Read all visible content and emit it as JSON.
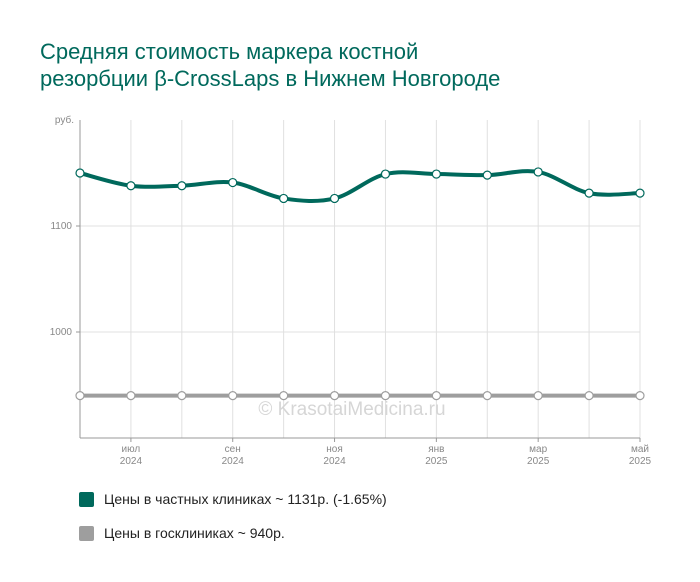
{
  "title_line1": "Средняя стоимость маркера костной",
  "title_line2": "резорбции β-CrossLaps в Нижнем Новгороде",
  "watermark": "© KrasotaiMedicina.ru",
  "colors": {
    "private": "#00695c",
    "public": "#9e9e9e",
    "title": "#00695c",
    "grid": "#e0e0e0",
    "axis": "#999999"
  },
  "legend": [
    {
      "label": "Цены в частных клиниках ~ 1131р. (-1.65%)",
      "color": "#00695c"
    },
    {
      "label": "Цены в госклиниках ~ 940р.",
      "color": "#9e9e9e"
    }
  ],
  "chart_data": {
    "type": "line",
    "y_unit_label": "руб.",
    "ylim": [
      900,
      1200
    ],
    "yticks": [
      1000,
      1100
    ],
    "x_tick_labels": [
      {
        "month": "июл",
        "year": "2024"
      },
      {
        "month": "сен",
        "year": "2024"
      },
      {
        "month": "ноя",
        "year": "2024"
      },
      {
        "month": "янв",
        "year": "2025"
      },
      {
        "month": "мар",
        "year": "2025"
      },
      {
        "month": "май",
        "year": "2025"
      }
    ],
    "x": [
      "июн 2024",
      "июл 2024",
      "авг 2024",
      "сен 2024",
      "окт 2024",
      "ноя 2024",
      "дек 2024",
      "янв 2025",
      "фев 2025",
      "мар 2025",
      "апр 2025",
      "май 2025"
    ],
    "series": [
      {
        "name": "Цены в частных клиниках",
        "color": "#00695c",
        "values": [
          1150,
          1138,
          1138,
          1141,
          1126,
          1126,
          1149,
          1149,
          1148,
          1151,
          1131,
          1131
        ]
      },
      {
        "name": "Цены в госклиниках",
        "color": "#9e9e9e",
        "values": [
          940,
          940,
          940,
          940,
          940,
          940,
          940,
          940,
          940,
          940,
          940,
          940
        ]
      }
    ],
    "grid": true
  }
}
